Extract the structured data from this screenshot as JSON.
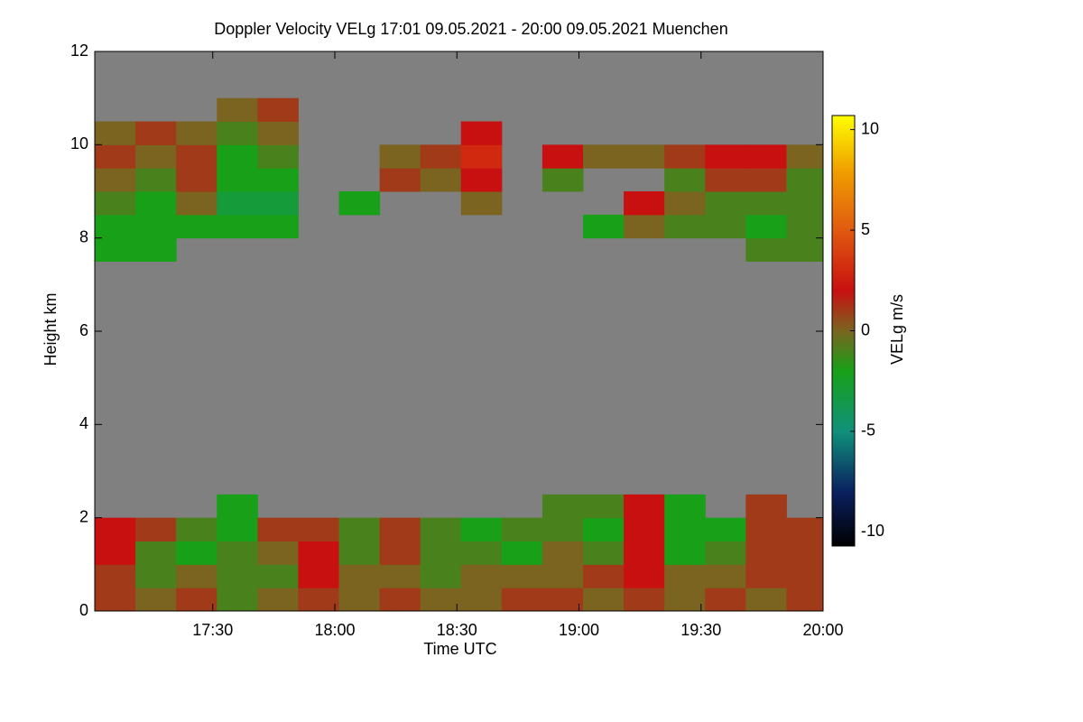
{
  "chart_data": {
    "type": "heatmap",
    "title": "Doppler Velocity VELg   17:01 09.05.2021 - 20:00 09.05.2021 Muenchen",
    "x_label": "Time UTC",
    "y_label": "Height km",
    "colorbar_label": "VELg m/s",
    "xlim": [
      "17:01",
      "20:00"
    ],
    "xticks": [
      "17:30",
      "18:00",
      "18:30",
      "19:00",
      "19:30",
      "20:00"
    ],
    "ylim": [
      0,
      12
    ],
    "yticks": [
      0,
      2,
      4,
      6,
      8,
      10,
      12
    ],
    "zlim": [
      -10.7,
      10.7
    ],
    "zticks": [
      -10,
      -5,
      0,
      5,
      10
    ],
    "background_color": "#808080",
    "colorscale": [
      [
        -10.7,
        "#000000"
      ],
      [
        -8,
        "#0a2060"
      ],
      [
        -5,
        "#10907a"
      ],
      [
        -2,
        "#18a018"
      ],
      [
        0,
        "#7a6420"
      ],
      [
        2,
        "#c81010"
      ],
      [
        5,
        "#e05a10"
      ],
      [
        8,
        "#f0a000"
      ],
      [
        10.7,
        "#ffff00"
      ]
    ],
    "x": [
      "17:06",
      "17:16",
      "17:26",
      "17:36",
      "17:46",
      "17:56",
      "18:06",
      "18:16",
      "18:26",
      "18:36",
      "18:46",
      "18:56",
      "19:06",
      "19:16",
      "19:26",
      "19:36",
      "19:46",
      "19:56"
    ],
    "y": [
      0.25,
      0.75,
      1.25,
      1.75,
      2.25,
      7.75,
      8.25,
      8.75,
      9.25,
      9.75,
      10.25,
      10.75
    ],
    "z": [
      [
        1,
        0,
        1,
        -1,
        0,
        1,
        0,
        1,
        0,
        0,
        1,
        1,
        0,
        1,
        0,
        1,
        0,
        1
      ],
      [
        1,
        -1,
        0,
        -1,
        -1,
        2,
        0,
        0,
        -1,
        0,
        0,
        0,
        1,
        2,
        0,
        0,
        1,
        1
      ],
      [
        2,
        -1,
        -2,
        -1,
        0,
        2,
        -1,
        1,
        -1,
        -1,
        -2,
        0,
        -1,
        2,
        -2,
        -1,
        1,
        1
      ],
      [
        2,
        1,
        -1,
        -2,
        1,
        1,
        -1,
        1,
        -1,
        -2,
        -1,
        -1,
        -2,
        2,
        -2,
        -2,
        1,
        1
      ],
      [
        null,
        null,
        null,
        -2,
        null,
        null,
        null,
        null,
        null,
        null,
        null,
        -1,
        -1,
        2,
        -2,
        null,
        1,
        null
      ],
      [
        -2,
        -2,
        null,
        null,
        null,
        null,
        null,
        null,
        null,
        null,
        null,
        null,
        null,
        null,
        null,
        null,
        -1,
        -1
      ],
      [
        -2,
        -2,
        -2,
        -2,
        -2,
        null,
        null,
        null,
        null,
        null,
        null,
        null,
        -2,
        0,
        -1,
        -1,
        -2,
        -1
      ],
      [
        -1,
        -2,
        0,
        -3,
        -3,
        null,
        -2,
        null,
        null,
        0,
        null,
        null,
        null,
        2,
        0,
        -1,
        -1,
        -1
      ],
      [
        0,
        -1,
        1,
        -2,
        -2,
        null,
        null,
        1,
        0,
        2,
        null,
        -1,
        null,
        null,
        -1,
        1,
        1,
        -1
      ],
      [
        1,
        0,
        1,
        -2,
        -1,
        null,
        null,
        0,
        1,
        3,
        null,
        2,
        0,
        0,
        1,
        2,
        2,
        0
      ],
      [
        0,
        1,
        0,
        -1,
        0,
        null,
        null,
        null,
        null,
        2,
        null,
        null,
        null,
        null,
        null,
        null,
        null,
        null
      ],
      [
        null,
        null,
        null,
        0,
        1,
        null,
        null,
        null,
        null,
        null,
        null,
        null,
        null,
        null,
        null,
        null,
        null,
        null
      ]
    ]
  }
}
